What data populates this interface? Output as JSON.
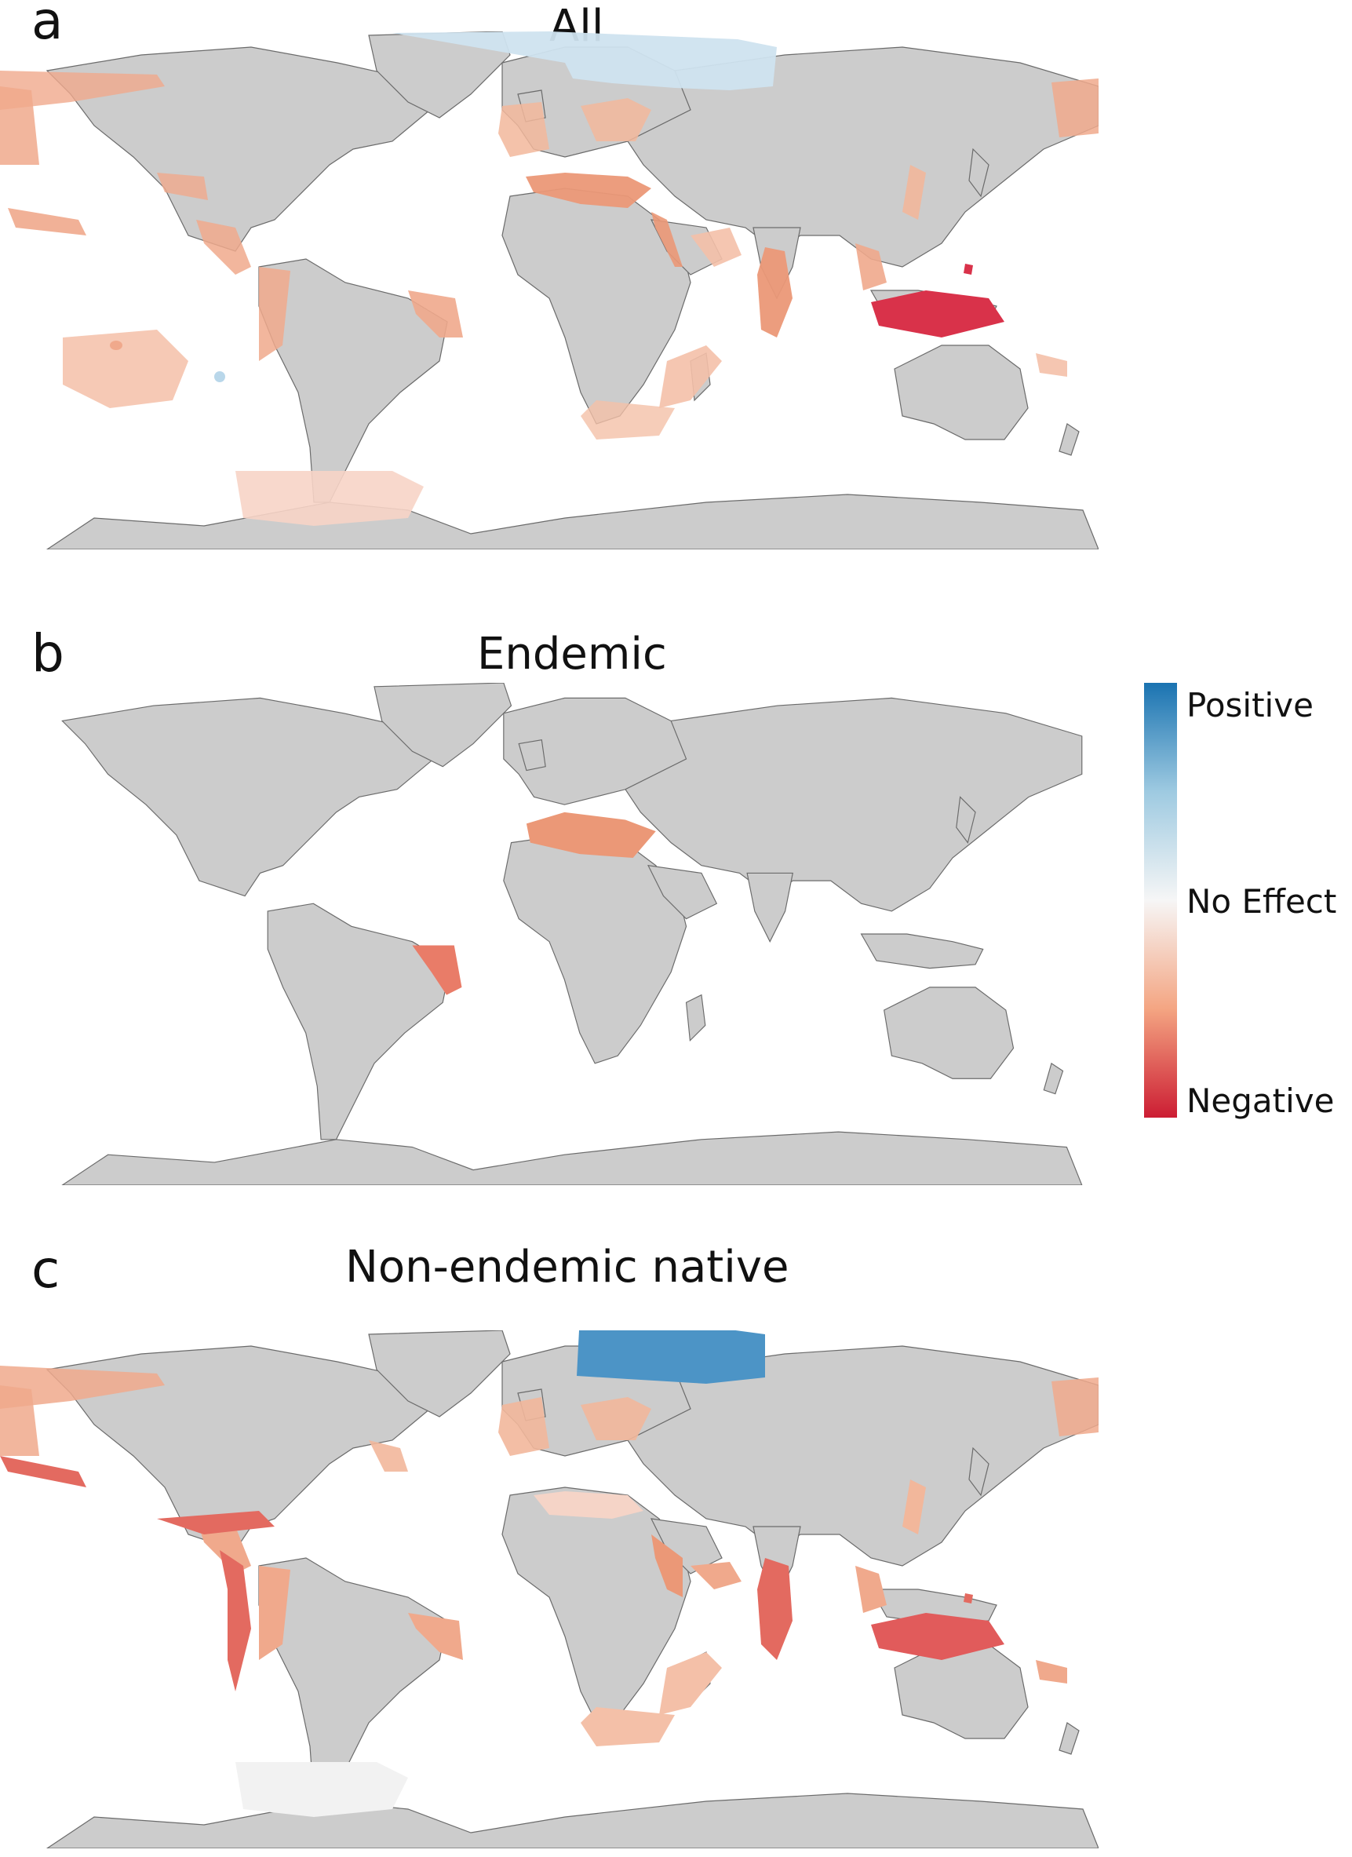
{
  "panels": [
    {
      "letter": "a",
      "title": "All"
    },
    {
      "letter": "b",
      "title": "Endemic"
    },
    {
      "letter": "c",
      "title": "Non-endemic native"
    }
  ],
  "legend": {
    "top_label": "Positive",
    "mid_label": "No Effect",
    "bottom_label": "Negative",
    "colors": {
      "positive": "#1a73b1",
      "neutral": "#f6f6f6",
      "negative": "#cc1d33"
    }
  },
  "land_color": "#cccccc"
}
